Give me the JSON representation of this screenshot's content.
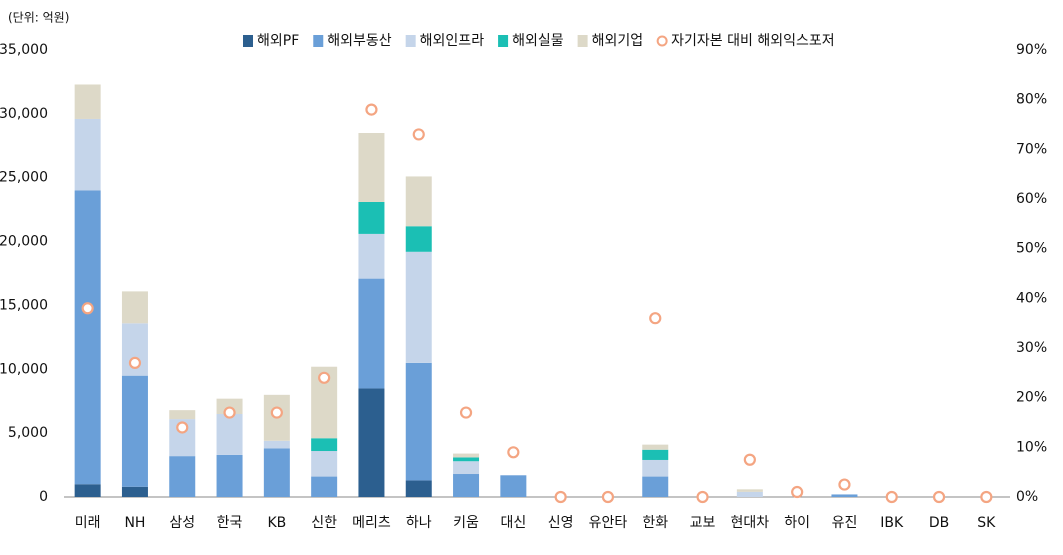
{
  "chart_data": {
    "type": "bar",
    "stacked": true,
    "unit_note": "(단위: 억원)",
    "categories": [
      "미래",
      "NH",
      "삼성",
      "한국",
      "KB",
      "신한",
      "메리츠",
      "하나",
      "키움",
      "대신",
      "신영",
      "유안타",
      "한화",
      "교보",
      "현대차",
      "하이",
      "유진",
      "IBK",
      "DB",
      "SK"
    ],
    "series": [
      {
        "name": "해외PF",
        "color": "#2c5f8f",
        "values": [
          1000,
          800,
          0,
          0,
          0,
          0,
          8500,
          1300,
          0,
          0,
          0,
          0,
          0,
          0,
          0,
          0,
          0,
          0,
          0,
          0
        ]
      },
      {
        "name": "해외부동산",
        "color": "#6a9fd8",
        "values": [
          23000,
          8700,
          3200,
          3300,
          3800,
          1600,
          8600,
          9200,
          1800,
          1700,
          0,
          0,
          1600,
          0,
          0,
          0,
          200,
          0,
          0,
          0
        ]
      },
      {
        "name": "해외인프라",
        "color": "#c5d5ea",
        "values": [
          5600,
          4100,
          2900,
          3200,
          600,
          2000,
          3500,
          8700,
          1000,
          0,
          0,
          0,
          1300,
          0,
          400,
          0,
          0,
          0,
          0,
          0
        ]
      },
      {
        "name": "해외실물",
        "color": "#1bbfb4",
        "values": [
          0,
          0,
          0,
          0,
          0,
          1000,
          2500,
          2000,
          300,
          0,
          0,
          0,
          800,
          0,
          0,
          0,
          0,
          0,
          0,
          0
        ]
      },
      {
        "name": "해외기업",
        "color": "#ddd9c8",
        "values": [
          2700,
          2500,
          700,
          1200,
          3600,
          5600,
          5400,
          3900,
          300,
          0,
          0,
          0,
          400,
          0,
          200,
          0,
          0,
          0,
          0,
          0
        ]
      },
      {
        "name": "자기자본 대비 해외익스포저",
        "type": "scatter",
        "axis": "y2",
        "color": "#f4a582",
        "values": [
          38,
          27,
          14,
          17,
          17,
          24,
          78,
          73,
          17,
          9,
          0,
          0,
          36,
          0,
          7.5,
          1,
          2.5,
          0,
          0,
          0
        ]
      }
    ],
    "ylim": [
      0,
      35000
    ],
    "yticks": [
      0,
      {
        "value": 5000,
        "label": "5,000"
      },
      {
        "value": 10000,
        "label": "10,000"
      },
      {
        "value": 15000,
        "label": "15,000"
      },
      {
        "value": 20000,
        "label": "20,000"
      },
      {
        "value": 25000,
        "label": "25,000"
      },
      {
        "value": 30000,
        "label": "30,000"
      },
      {
        "value": 35000,
        "label": "35,000"
      }
    ],
    "y2lim": [
      0,
      90
    ],
    "y2ticks": [
      {
        "value": 0,
        "label": "0%"
      },
      {
        "value": 10,
        "label": "10%"
      },
      {
        "value": 20,
        "label": "20%"
      },
      {
        "value": 30,
        "label": "30%"
      },
      {
        "value": 40,
        "label": "40%"
      },
      {
        "value": 50,
        "label": "50%"
      },
      {
        "value": 60,
        "label": "60%"
      },
      {
        "value": 70,
        "label": "70%"
      },
      {
        "value": 80,
        "label": "80%"
      },
      {
        "value": 90,
        "label": "90%"
      }
    ],
    "legend": "top"
  }
}
